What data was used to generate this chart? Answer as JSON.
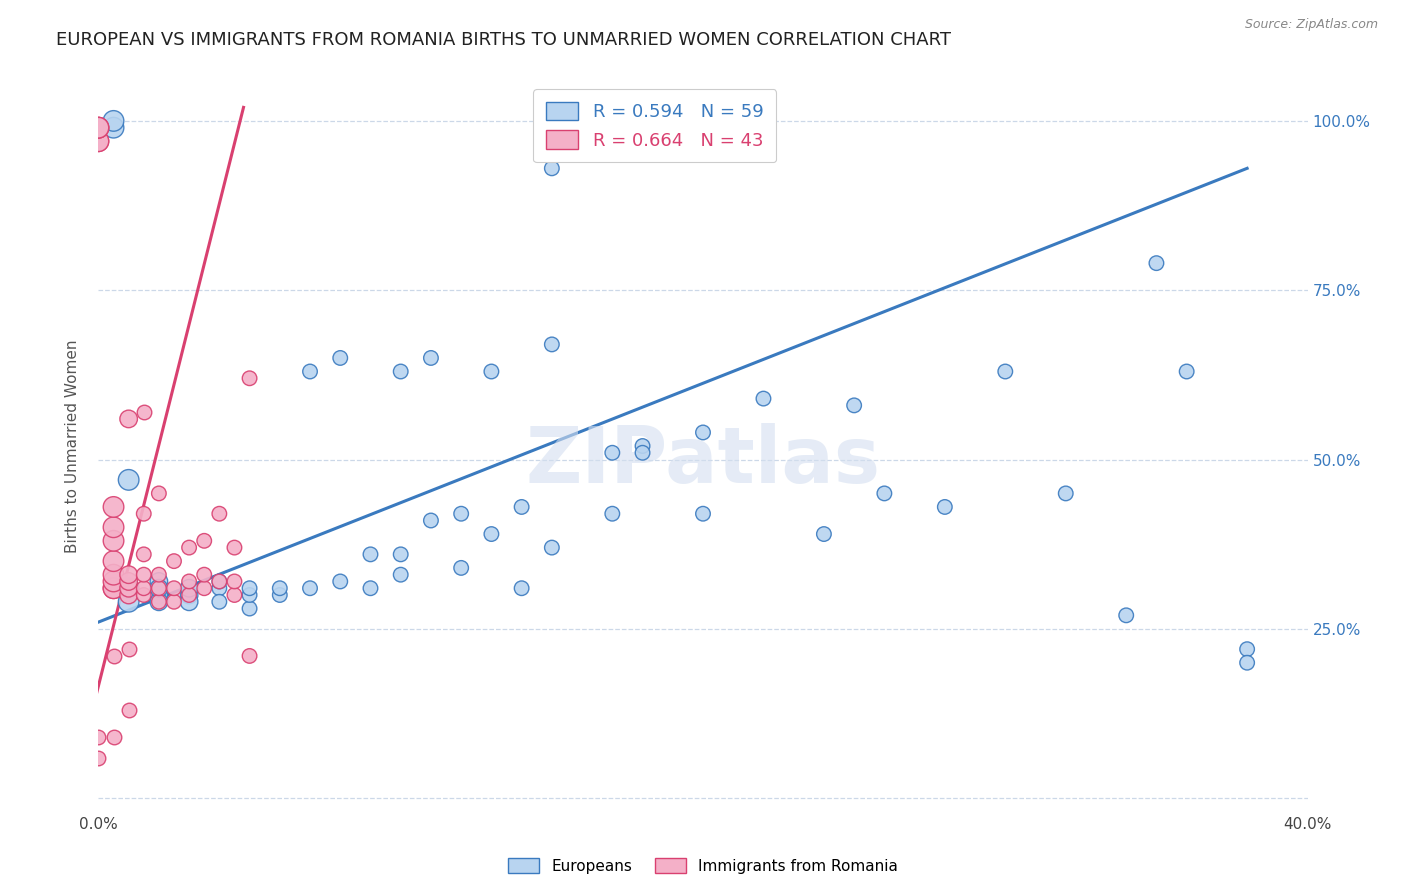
{
  "title": "EUROPEAN VS IMMIGRANTS FROM ROMANIA BIRTHS TO UNMARRIED WOMEN CORRELATION CHART",
  "source": "Source: ZipAtlas.com",
  "ylabel": "Births to Unmarried Women",
  "xmin": 0.0,
  "xmax": 0.4,
  "ymin": -0.02,
  "ymax": 1.06,
  "x_ticks": [
    0.0,
    0.05,
    0.1,
    0.15,
    0.2,
    0.25,
    0.3,
    0.35,
    0.4
  ],
  "x_tick_labels": [
    "0.0%",
    "",
    "",
    "",
    "",
    "",
    "",
    "",
    "40.0%"
  ],
  "y_ticks": [
    0.0,
    0.25,
    0.5,
    0.75,
    1.0
  ],
  "y_tick_labels_right": [
    "",
    "25.0%",
    "50.0%",
    "75.0%",
    "100.0%"
  ],
  "blue_color": "#b8d4f0",
  "pink_color": "#f4b0c8",
  "blue_line_color": "#3a7abf",
  "pink_line_color": "#d94070",
  "legend_blue_R": "R = 0.594",
  "legend_blue_N": "N = 59",
  "legend_pink_R": "R = 0.664",
  "legend_pink_N": "N = 43",
  "legend_label_blue": "Europeans",
  "legend_label_pink": "Immigrants from Romania",
  "watermark": "ZIPatlas",
  "blue_scatter_x": [
    0.005,
    0.005,
    0.01,
    0.01,
    0.01,
    0.02,
    0.02,
    0.02,
    0.02,
    0.03,
    0.03,
    0.03,
    0.04,
    0.04,
    0.04,
    0.05,
    0.05,
    0.05,
    0.06,
    0.06,
    0.07,
    0.07,
    0.08,
    0.08,
    0.09,
    0.09,
    0.1,
    0.1,
    0.1,
    0.11,
    0.11,
    0.12,
    0.12,
    0.13,
    0.13,
    0.14,
    0.14,
    0.15,
    0.15,
    0.15,
    0.17,
    0.17,
    0.18,
    0.18,
    0.2,
    0.2,
    0.22,
    0.24,
    0.25,
    0.26,
    0.28,
    0.3,
    0.32,
    0.34,
    0.35,
    0.36,
    0.38,
    0.38
  ],
  "blue_scatter_y": [
    0.99,
    1.0,
    0.47,
    0.31,
    0.29,
    0.32,
    0.3,
    0.29,
    0.31,
    0.3,
    0.29,
    0.31,
    0.31,
    0.29,
    0.32,
    0.28,
    0.3,
    0.31,
    0.3,
    0.31,
    0.31,
    0.63,
    0.32,
    0.65,
    0.36,
    0.31,
    0.33,
    0.36,
    0.63,
    0.41,
    0.65,
    0.34,
    0.42,
    0.39,
    0.63,
    0.43,
    0.31,
    0.37,
    0.67,
    0.93,
    0.42,
    0.51,
    0.52,
    0.51,
    0.42,
    0.54,
    0.59,
    0.39,
    0.58,
    0.45,
    0.43,
    0.63,
    0.45,
    0.27,
    0.79,
    0.63,
    0.22,
    0.2
  ],
  "pink_scatter_x": [
    0.0,
    0.0,
    0.0,
    0.0,
    0.0,
    0.005,
    0.005,
    0.005,
    0.005,
    0.005,
    0.005,
    0.005,
    0.005,
    0.01,
    0.01,
    0.01,
    0.01,
    0.01,
    0.015,
    0.015,
    0.015,
    0.015,
    0.015,
    0.02,
    0.02,
    0.02,
    0.02,
    0.025,
    0.025,
    0.025,
    0.03,
    0.03,
    0.03,
    0.035,
    0.035,
    0.035,
    0.04,
    0.04,
    0.045,
    0.045,
    0.045,
    0.05,
    0.05
  ],
  "pink_scatter_y": [
    0.97,
    0.97,
    0.99,
    0.99,
    0.99,
    0.31,
    0.31,
    0.32,
    0.33,
    0.35,
    0.38,
    0.4,
    0.43,
    0.3,
    0.31,
    0.32,
    0.33,
    0.56,
    0.3,
    0.31,
    0.33,
    0.36,
    0.42,
    0.29,
    0.31,
    0.33,
    0.45,
    0.29,
    0.31,
    0.35,
    0.3,
    0.32,
    0.37,
    0.31,
    0.33,
    0.38,
    0.32,
    0.42,
    0.3,
    0.32,
    0.37,
    0.21,
    0.62
  ],
  "pink_scatter_x_low": [
    0.0,
    0.0,
    0.005,
    0.005,
    0.01,
    0.01,
    0.015
  ],
  "pink_scatter_y_low": [
    0.06,
    0.09,
    0.09,
    0.21,
    0.13,
    0.22,
    0.57
  ],
  "blue_line_x": [
    0.0,
    0.38
  ],
  "blue_line_y": [
    0.26,
    0.93
  ],
  "pink_line_x": [
    -0.002,
    0.048
  ],
  "pink_line_y": [
    0.13,
    1.02
  ],
  "marker_size_large": 200,
  "marker_size_med": 140,
  "marker_size_small": 90,
  "background_color": "#ffffff",
  "grid_color": "#ccd8e8",
  "title_fontsize": 13,
  "axis_fontsize": 11
}
